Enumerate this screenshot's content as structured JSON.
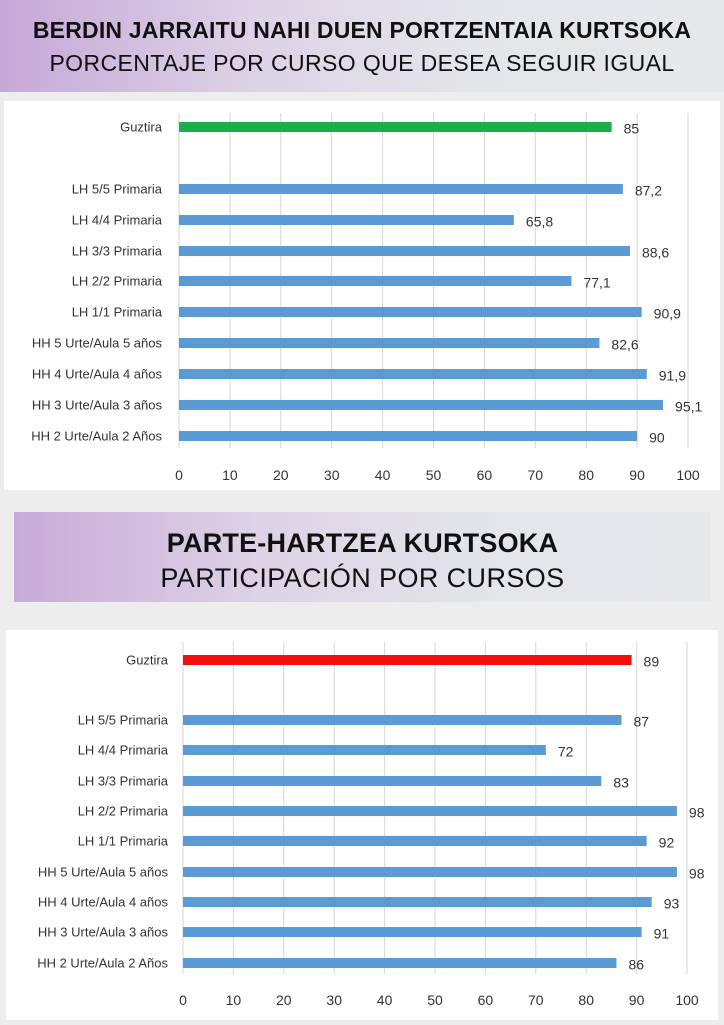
{
  "header1": {
    "title": "BERDIN JARRAITU NAHI DUEN PORTZENTAIA KURTSOKA",
    "subtitle": "PORCENTAJE POR CURSO QUE DESEA SEGUIR IGUAL"
  },
  "header2": {
    "title": "PARTE-HARTZEA KURTSOKA",
    "subtitle": "PARTICIPACIÓN POR CURSOS"
  },
  "colors": {
    "bar_default": "#5b9bd5",
    "chart1_total": "#1aaf4b",
    "chart2_total": "#f20f0f",
    "grid": "#d6d6d6"
  },
  "chart_data": [
    {
      "type": "bar",
      "orientation": "horizontal",
      "title": "",
      "categories": [
        "Guztira",
        "LH 5/5 Primaria",
        "LH 4/4 Primaria",
        "LH 3/3 Primaria",
        "LH 2/2 Primaria",
        "LH 1/1 Primaria",
        "HH 5 Urte/Aula 5 años",
        "HH 4 Urte/Aula 4 años",
        "HH 3 Urte/Aula 3 años",
        "HH 2 Urte/Aula 2 Años"
      ],
      "values": [
        85,
        87.2,
        65.8,
        88.6,
        77.1,
        90.9,
        82.6,
        91.9,
        95.1,
        90
      ],
      "value_labels": [
        "85",
        "87,2",
        "65,8",
        "88,6",
        "77,1",
        "90,9",
        "82,6",
        "91,9",
        "95,1",
        "90"
      ],
      "highlight": {
        "category": "Guztira",
        "color": "#1aaf4b"
      },
      "xlim": [
        0,
        100
      ],
      "xticks": [
        0,
        10,
        20,
        30,
        40,
        50,
        60,
        70,
        80,
        90,
        100
      ],
      "grid": "vertical"
    },
    {
      "type": "bar",
      "orientation": "horizontal",
      "title": "",
      "categories": [
        "Guztira",
        "LH 5/5 Primaria",
        "LH 4/4 Primaria",
        "LH 3/3 Primaria",
        "LH 2/2 Primaria",
        "LH 1/1 Primaria",
        "HH 5 Urte/Aula 5 años",
        "HH 4 Urte/Aula 4 años",
        "HH 3 Urte/Aula 3 años",
        "HH 2 Urte/Aula 2 Años"
      ],
      "values": [
        89,
        87,
        72,
        83,
        98,
        92,
        98,
        93,
        91,
        86
      ],
      "value_labels": [
        "89",
        "87",
        "72",
        "83",
        "98",
        "92",
        "98",
        "93",
        "91",
        "86"
      ],
      "highlight": {
        "category": "Guztira",
        "color": "#f20f0f"
      },
      "xlim": [
        0,
        100
      ],
      "xticks": [
        0,
        10,
        20,
        30,
        40,
        50,
        60,
        70,
        80,
        90,
        100
      ],
      "grid": "vertical"
    }
  ]
}
